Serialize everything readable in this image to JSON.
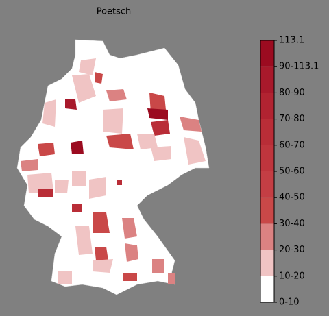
{
  "title": "Poetsch",
  "colorbar": {
    "labels": [
      "0-10",
      "10-20",
      "20-30",
      "30-40",
      "40-50",
      "50-60",
      "60-70",
      "70-80",
      "80-90",
      "90-113.1",
      "113.1"
    ],
    "colors": [
      "#ffffff",
      "#f0c4c4",
      "#db8282",
      "#c94848",
      "#c43e44",
      "#bf353d",
      "#b92d37",
      "#b12331",
      "#a8192b",
      "#9b0b20"
    ]
  }
}
